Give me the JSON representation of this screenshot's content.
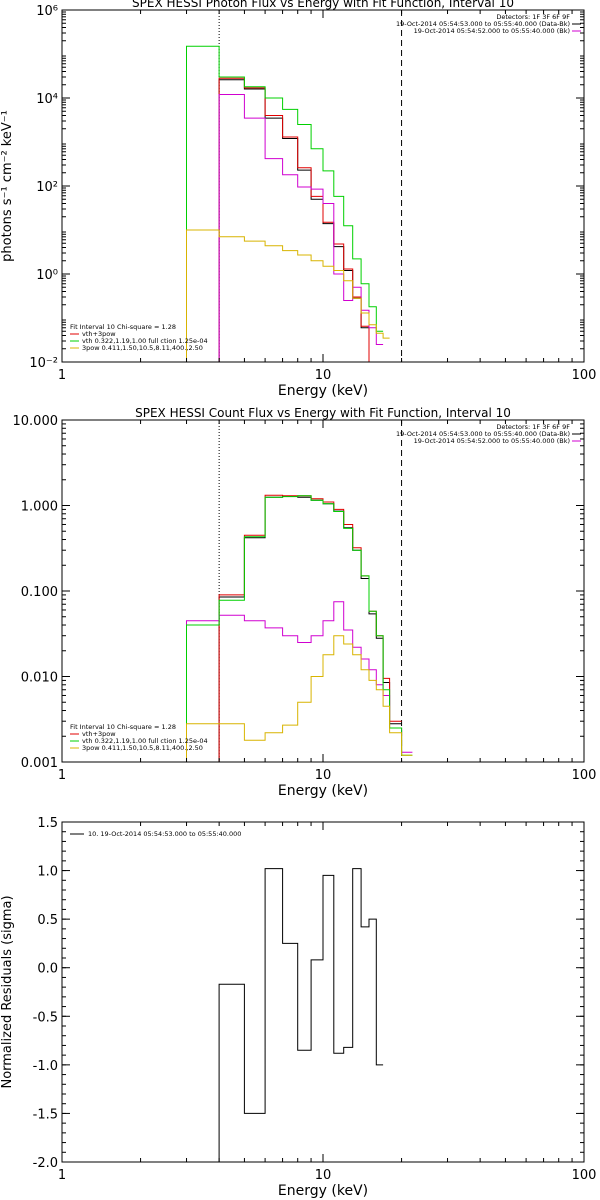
{
  "colors": {
    "black": "#000000",
    "red": "#e00000",
    "magenta": "#d000d0",
    "green": "#00d000",
    "yellow": "#d8b400",
    "purple": "#8000a0"
  },
  "chart_data": [
    {
      "type": "line",
      "title": "SPEX HESSI Photon Flux vs Energy with Fit Function, Interval 10",
      "xlabel": "Energy (keV)",
      "ylabel": "photons s⁻¹ cm⁻² keV⁻¹",
      "xscale": "log",
      "yscale": "log",
      "xlim": [
        1,
        100
      ],
      "ylim": [
        0.01,
        1000000
      ],
      "x_ticks": [
        1,
        10,
        100
      ],
      "x_tick_labels": [
        "1",
        "10",
        "100"
      ],
      "y_ticks": [
        0.01,
        1,
        100,
        10000,
        1000000
      ],
      "y_tick_labels": [
        "10⁻²",
        "10⁰",
        "10²",
        "10⁴",
        "10⁶"
      ],
      "vlines": [
        {
          "x": 4,
          "style": "dotted"
        },
        {
          "x": 20,
          "style": "dashed"
        }
      ],
      "legend_top": [
        "Detectors: 1F 3F 6F 9F",
        "19-Oct-2014 05:54:53.000 to 05:55:40.000 (Data-Bk)",
        "19-Oct-2014 05:54:52.000 to 05:55:40.000 (Bk)"
      ],
      "legend_bottom": [
        "Fit Interval 10   Chi-square = 1.28",
        "vth+3pow",
        "vth 0.322,1.19,1.00  full ction 1.25e-04",
        "3pow 0.411,1.50,10.5,8.11,400.,2.50"
      ],
      "edges": [
        3,
        4,
        5,
        6,
        7,
        8,
        9,
        10,
        11,
        12,
        13,
        14,
        15,
        16,
        17,
        18,
        20,
        22
      ],
      "series": [
        {
          "color": "black",
          "start": 1,
          "values": [
            26000,
            16000,
            3500,
            1200,
            230,
            50,
            14,
            4.2,
            1.2,
            0.28,
            0.06,
            0.0095
          ]
        },
        {
          "color": "red",
          "start": 1,
          "values": [
            28000,
            17000,
            4000,
            1300,
            260,
            58,
            15,
            4.8,
            1.3,
            0.3,
            0.065,
            0.01
          ]
        },
        {
          "color": "magenta",
          "start": 1,
          "values": [
            12000,
            3500,
            420,
            180,
            95,
            85,
            40,
            1.0,
            0.25,
            0.5,
            0.15,
            0.06,
            0.025
          ]
        },
        {
          "color": "green",
          "start": 0,
          "values": [
            150000,
            30000,
            18000,
            10000,
            5500,
            2500,
            700,
            220,
            58,
            12.5,
            2.2,
            0.6,
            0.18,
            0.05
          ]
        },
        {
          "color": "yellow",
          "start": 0,
          "values": [
            10,
            7,
            5.6,
            4.4,
            3.4,
            2.7,
            2.0,
            1.5,
            1.2,
            0.7,
            0.28,
            0.13,
            0.07,
            0.045,
            0.035
          ]
        }
      ]
    },
    {
      "type": "line",
      "title": "SPEX HESSI Count Flux vs Energy with Fit Function, Interval 10",
      "xlabel": "Energy (keV)",
      "ylabel": "",
      "xscale": "log",
      "yscale": "log",
      "xlim": [
        1,
        100
      ],
      "ylim": [
        0.001,
        10
      ],
      "x_ticks": [
        1,
        10,
        100
      ],
      "x_tick_labels": [
        "1",
        "10",
        "100"
      ],
      "y_ticks": [
        0.001,
        0.01,
        0.1,
        1,
        10
      ],
      "y_tick_labels": [
        "0.001",
        "0.010",
        "0.100",
        "1.000",
        "10.000"
      ],
      "vlines": [
        {
          "x": 4,
          "style": "dotted"
        },
        {
          "x": 20,
          "style": "dashed"
        }
      ],
      "legend_top": [
        "Detectors: 1F 3F 6F 9F",
        "19-Oct-2014 05:54:53.000 to 05:55:40.000 (Data-Bk)",
        "19-Oct-2014 05:54:52.000 to 05:55:40.000 (Bk)"
      ],
      "legend_bottom": [
        "Fit Interval 10   Chi-square = 1.28",
        "vth+3pow",
        "vth 0.322,1.19,1.00  full ction 1.25e-04",
        "3pow 0.411,1.50,10.5,8.11,400.,2.50"
      ],
      "edges": [
        3,
        4,
        5,
        6,
        7,
        8,
        9,
        10,
        11,
        12,
        13,
        14,
        15,
        16,
        17,
        18,
        20,
        22
      ],
      "series": [
        {
          "color": "black",
          "start": 1,
          "values": [
            0.085,
            0.42,
            1.25,
            1.28,
            1.25,
            1.15,
            1.05,
            0.86,
            0.55,
            0.3,
            0.14,
            0.054,
            0.028,
            0.0085,
            0.0028
          ]
        },
        {
          "color": "red",
          "start": 1,
          "values": [
            0.09,
            0.45,
            1.32,
            1.3,
            1.3,
            1.2,
            1.1,
            0.9,
            0.6,
            0.32,
            0.15,
            0.058,
            0.03,
            0.0095,
            0.003
          ]
        },
        {
          "color": "magenta",
          "start": 0,
          "values": [
            0.045,
            0.052,
            0.045,
            0.037,
            0.03,
            0.025,
            0.03,
            0.045,
            0.075,
            0.035,
            0.022,
            0.016,
            0.012,
            0.008,
            0.006,
            0.0025,
            0.0013
          ]
        },
        {
          "color": "green",
          "start": 0,
          "values": [
            0.04,
            0.078,
            0.43,
            1.25,
            1.27,
            1.3,
            1.15,
            1.05,
            0.85,
            0.54,
            0.3,
            0.15,
            0.058,
            0.03,
            0.007,
            0.0025,
            0.0012
          ]
        },
        {
          "color": "yellow",
          "start": 0,
          "values": [
            0.0028,
            0.0028,
            0.0018,
            0.0022,
            0.0027,
            0.005,
            0.01,
            0.018,
            0.03,
            0.024,
            0.018,
            0.012,
            0.009,
            0.007,
            0.0045,
            0.0022,
            0.0012
          ]
        }
      ]
    },
    {
      "type": "line",
      "title": "",
      "xlabel": "Energy (keV)",
      "ylabel": "Normalized Residuals (sigma)",
      "xscale": "log",
      "yscale": "linear",
      "xlim": [
        1,
        100
      ],
      "ylim": [
        -2,
        1.5
      ],
      "x_ticks": [
        1,
        10,
        100
      ],
      "x_tick_labels": [
        "1",
        "10",
        "100"
      ],
      "y_ticks": [
        -2,
        -1.5,
        -1,
        -0.5,
        0,
        0.5,
        1,
        1.5
      ],
      "y_tick_labels": [
        "-2.0",
        "-1.5",
        "-1.0",
        "-0.5",
        "0.0",
        "0.5",
        "1.0",
        "1.5"
      ],
      "legend_top": [
        "10. 19-Oct-2014 05:54:53.000 to 05:55:40.000"
      ],
      "edges": [
        4,
        5,
        6,
        7,
        8,
        9,
        10,
        11,
        12,
        13,
        14,
        15,
        16,
        17,
        18,
        20
      ],
      "series": [
        {
          "color": "black",
          "start": 0,
          "values": [
            -0.17,
            -1.5,
            1.02,
            0.25,
            -0.85,
            0.08,
            0.95,
            -0.88,
            -0.82,
            1.02,
            0.42,
            0.5,
            -1.0
          ]
        }
      ]
    }
  ]
}
